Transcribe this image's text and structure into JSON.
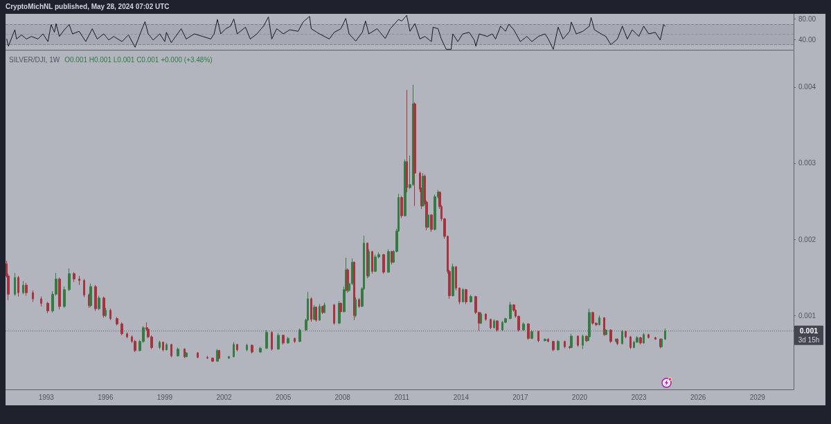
{
  "chart_data": [
    {
      "type": "line",
      "annotations": [
        "CryptoMichNL published, May 28, 2024 07:02 UTC"
      ],
      "series": [
        {
          "color": "#131722",
          "x": [
            "1991-01",
            "1991-02",
            "1991-05",
            "1991-06",
            "1991-07",
            "1991-10",
            "1992-01",
            "1992-04",
            "1992-08",
            "1992-11",
            "1993-02",
            "1993-04",
            "1993-06",
            "1993-07",
            "1993-09",
            "1993-12",
            "1994-03",
            "1994-05",
            "1994-09",
            "1995-01",
            "1995-05",
            "1995-08",
            "1995-12",
            "1996-03",
            "1996-06",
            "1996-11",
            "1997-03",
            "1997-07",
            "1997-11",
            "1998-01",
            "1998-03",
            "1998-06",
            "1998-10",
            "1999-01",
            "1999-02",
            "1999-05",
            "1999-11",
            "2000-02",
            "2000-07",
            "2000-12",
            "2001-05",
            "2001-07",
            "2001-09",
            "2001-11",
            "2002-02",
            "2002-05",
            "2002-07",
            "2002-09",
            "2003-02",
            "2003-05",
            "2003-09",
            "2004-01",
            "2004-04",
            "2004-06",
            "2004-09",
            "2005-01",
            "2005-05",
            "2005-10",
            "2006-01",
            "2006-05",
            "2006-06",
            "2006-11",
            "2007-05",
            "2007-08",
            "2007-12",
            "2008-03",
            "2008-05",
            "2008-09",
            "2009-01",
            "2009-03",
            "2009-05",
            "2009-10",
            "2010-03",
            "2010-06",
            "2010-11",
            "2011-01",
            "2011-04",
            "2011-06",
            "2011-09",
            "2011-12",
            "2012-03",
            "2012-07",
            "2012-08",
            "2012-11",
            "2013-01",
            "2013-04",
            "2013-07",
            "2013-08",
            "2013-11",
            "2014-02",
            "2014-06",
            "2014-09",
            "2014-10",
            "2014-12",
            "2015-05",
            "2015-08",
            "2015-10",
            "2016-01",
            "2016-04",
            "2016-06",
            "2016-09",
            "2017-01",
            "2017-05",
            "2017-08",
            "2017-12",
            "2018-04",
            "2018-06",
            "2018-09",
            "2018-12",
            "2019-03",
            "2019-07",
            "2019-08",
            "2019-11",
            "2020-03",
            "2020-07",
            "2020-08",
            "2020-10",
            "2021-02",
            "2021-05",
            "2021-08",
            "2021-12",
            "2022-03",
            "2022-06",
            "2022-09",
            "2023-01",
            "2023-04",
            "2023-07",
            "2023-11",
            "2024-02",
            "2024-04",
            "2024-05"
          ],
          "values": [
            41,
            27,
            51,
            59,
            41,
            49,
            41,
            46,
            41,
            51,
            36,
            69,
            54,
            71,
            46,
            59,
            69,
            51,
            56,
            36,
            61,
            41,
            51,
            39,
            46,
            36,
            49,
            25,
            59,
            75,
            51,
            39,
            51,
            36,
            54,
            34,
            61,
            41,
            51,
            46,
            41,
            51,
            79,
            51,
            61,
            66,
            80,
            51,
            64,
            41,
            51,
            66,
            84,
            41,
            61,
            51,
            59,
            56,
            74,
            85,
            61,
            51,
            41,
            54,
            61,
            81,
            51,
            37,
            54,
            76,
            51,
            61,
            42,
            61,
            79,
            76,
            87,
            56,
            71,
            41,
            46,
            36,
            64,
            61,
            41,
            21,
            21,
            51,
            36,
            51,
            54,
            39,
            27,
            51,
            46,
            51,
            41,
            66,
            56,
            70,
            59,
            36,
            46,
            36,
            46,
            51,
            41,
            21,
            64,
            41,
            56,
            74,
            51,
            56,
            66,
            83,
            59,
            51,
            46,
            30,
            41,
            66,
            41,
            59,
            46,
            66,
            51,
            54,
            39,
            69,
            66
          ]
        }
      ],
      "xlim": [
        "1990-12-10",
        "2030-11-01"
      ],
      "ylim": [
        20,
        90
      ],
      "yticks": [
        {
          "value": 80,
          "label": "80.00"
        },
        {
          "value": 40,
          "label": "40.00"
        }
      ],
      "tick_labels": "y",
      "bands": [
        {
          "axis": "y",
          "from": 30,
          "to": 70,
          "color": "#a6a9b3"
        }
      ],
      "ref_lines": [
        {
          "axis": "y",
          "value": 70,
          "line_style": "dashed",
          "color": "#7e818b"
        },
        {
          "axis": "y",
          "value": 50,
          "line_style": "dashed",
          "color": "#8e919b"
        },
        {
          "axis": "y",
          "value": 30,
          "line_style": "dashed",
          "color": "#7e818b"
        }
      ]
    },
    {
      "type": "candlestick",
      "title": "SILVER/DJI, 1W",
      "annotations": [
        "O0.001 H0.001 L0.001 C0.001 +0.000 (+3.48%)",
        "3d 15h"
      ],
      "x": [
        "1991-01",
        "1991-02",
        "1991-06",
        "1991-08",
        "1991-11",
        "1992-01",
        "1992-05",
        "1992-10",
        "1993-02",
        "1993-05",
        "1993-07",
        "1993-09",
        "1993-12",
        "1994-03",
        "1994-06",
        "1994-09",
        "1994-12",
        "1995-03",
        "1995-04",
        "1995-07",
        "1995-09",
        "1995-12",
        "1996-01",
        "1996-04",
        "1996-08",
        "1996-11",
        "1997-02",
        "1997-05",
        "1997-07",
        "1997-10",
        "1997-12",
        "1998-02",
        "1998-03",
        "1998-05",
        "1998-10",
        "1998-12",
        "1999-02",
        "1999-05",
        "1999-09",
        "2000-01",
        "2000-02",
        "2000-09",
        "2001-03",
        "2001-06",
        "2001-09",
        "2001-10",
        "2002-04",
        "2002-07",
        "2002-09",
        "2003-03",
        "2003-06",
        "2003-11",
        "2004-03",
        "2004-06",
        "2004-10",
        "2005-01",
        "2005-04",
        "2005-08",
        "2005-11",
        "2006-03",
        "2006-04",
        "2006-06",
        "2006-08",
        "2006-09",
        "2006-11",
        "2007-01",
        "2007-02",
        "2007-08",
        "2007-11",
        "2007-12",
        "2008-02",
        "2008-03",
        "2008-04",
        "2008-05",
        "2008-07",
        "2008-08",
        "2008-09",
        "2008-11",
        "2009-01",
        "2009-02",
        "2009-04",
        "2009-05",
        "2009-07",
        "2009-09",
        "2009-11",
        "2010-02",
        "2010-05",
        "2010-07",
        "2010-08",
        "2010-10",
        "2010-11",
        "2011-01",
        "2011-03",
        "2011-04",
        "2011-06",
        "2011-08",
        "2011-09",
        "2011-12",
        "2012-01",
        "2012-02",
        "2012-03",
        "2012-04",
        "2012-05",
        "2012-07",
        "2012-09",
        "2012-11",
        "2012-12",
        "2013-01",
        "2013-03",
        "2013-05",
        "2013-06",
        "2013-08",
        "2013-10",
        "2013-12",
        "2014-02",
        "2014-04",
        "2014-07",
        "2014-10",
        "2014-12",
        "2015-01",
        "2015-04",
        "2015-07",
        "2015-09",
        "2015-11",
        "2016-02",
        "2016-04",
        "2016-07",
        "2016-09",
        "2016-10",
        "2016-12",
        "2017-03",
        "2017-06",
        "2017-08",
        "2017-12",
        "2018-04",
        "2018-06",
        "2018-09",
        "2018-12",
        "2019-04",
        "2019-07",
        "2019-08",
        "2019-12",
        "2020-03",
        "2020-05",
        "2020-06",
        "2020-07",
        "2020-09",
        "2020-11",
        "2021-01",
        "2021-04",
        "2021-05",
        "2021-08",
        "2021-11",
        "2021-12",
        "2022-03",
        "2022-05",
        "2022-08",
        "2022-10",
        "2022-12",
        "2023-02",
        "2023-04",
        "2023-07",
        "2023-11",
        "2024-02",
        "2024-03",
        "2024-05"
      ],
      "ohlc": [
        [
          0.00168,
          0.00172,
          0.0015,
          0.00152
        ],
        [
          0.00152,
          0.00155,
          0.0012,
          0.00128
        ],
        [
          0.00128,
          0.00156,
          0.00126,
          0.0015
        ],
        [
          0.0015,
          0.00152,
          0.00125,
          0.0013
        ],
        [
          0.0013,
          0.00145,
          0.00128,
          0.0014
        ],
        [
          0.0014,
          0.00143,
          0.00126,
          0.0013
        ],
        [
          0.0013,
          0.00133,
          0.00118,
          0.00122
        ],
        [
          0.00122,
          0.00125,
          0.00112,
          0.00116
        ],
        [
          0.00116,
          0.00118,
          0.00103,
          0.00106
        ],
        [
          0.00106,
          0.00132,
          0.00104,
          0.00128
        ],
        [
          0.00128,
          0.00156,
          0.00126,
          0.00148
        ],
        [
          0.00148,
          0.0015,
          0.00108,
          0.00112
        ],
        [
          0.00112,
          0.00138,
          0.0011,
          0.00134
        ],
        [
          0.00134,
          0.00162,
          0.00132,
          0.00155
        ],
        [
          0.00155,
          0.00157,
          0.00144,
          0.00148
        ],
        [
          0.00148,
          0.00152,
          0.0014,
          0.00146
        ],
        [
          0.00146,
          0.00148,
          0.00124,
          0.00127
        ],
        [
          0.00127,
          0.00129,
          0.0011,
          0.00113
        ],
        [
          0.00113,
          0.00142,
          0.00111,
          0.00138
        ],
        [
          0.00138,
          0.0014,
          0.00106,
          0.00109
        ],
        [
          0.00109,
          0.00126,
          0.00107,
          0.00123
        ],
        [
          0.00123,
          0.00125,
          0.00097,
          0.001
        ],
        [
          0.001,
          0.0011,
          0.00098,
          0.00107
        ],
        [
          0.00107,
          0.00109,
          0.00094,
          0.00096
        ],
        [
          0.00096,
          0.00098,
          0.00087,
          0.00089
        ],
        [
          0.00089,
          0.00091,
          0.00074,
          0.00076
        ],
        [
          0.00076,
          0.00078,
          0.0007,
          0.00072
        ],
        [
          0.00072,
          0.00074,
          0.00064,
          0.00066
        ],
        [
          0.00066,
          0.00068,
          0.00052,
          0.00054
        ],
        [
          0.00054,
          0.00068,
          0.00053,
          0.00066
        ],
        [
          0.00066,
          0.00086,
          0.00064,
          0.00084
        ],
        [
          0.00084,
          0.00091,
          0.0008,
          0.00082
        ],
        [
          0.00082,
          0.00084,
          0.0007,
          0.00072
        ],
        [
          0.00072,
          0.00074,
          0.00056,
          0.00058
        ],
        [
          0.00058,
          0.00067,
          0.00056,
          0.00065
        ],
        [
          0.00065,
          0.00066,
          0.00053,
          0.00055
        ],
        [
          0.00055,
          0.00064,
          0.00054,
          0.00062
        ],
        [
          0.00062,
          0.00063,
          0.00045,
          0.00047
        ],
        [
          0.00047,
          0.00058,
          0.00046,
          0.00056
        ],
        [
          0.00056,
          0.00057,
          0.00044,
          0.00046
        ],
        [
          0.00046,
          0.00052,
          0.00045,
          0.00051
        ],
        [
          0.00051,
          0.00052,
          0.00044,
          0.00045
        ],
        [
          0.00045,
          0.00047,
          0.00043,
          0.00044
        ],
        [
          0.00044,
          0.00045,
          0.00039,
          0.0004
        ],
        [
          0.0004,
          0.00056,
          0.0004,
          0.00054
        ],
        [
          0.00054,
          0.00055,
          0.00043,
          0.00044
        ],
        [
          0.00044,
          0.00047,
          0.00043,
          0.00046
        ],
        [
          0.00046,
          0.00065,
          0.00045,
          0.00062
        ],
        [
          0.00062,
          0.00063,
          0.00053,
          0.00055
        ],
        [
          0.00055,
          0.00063,
          0.00053,
          0.00061
        ],
        [
          0.00061,
          0.00062,
          0.0005,
          0.00052
        ],
        [
          0.00052,
          0.00059,
          0.00051,
          0.00057
        ],
        [
          0.00057,
          0.00081,
          0.00056,
          0.00078
        ],
        [
          0.00078,
          0.00079,
          0.00054,
          0.00056
        ],
        [
          0.00056,
          0.00077,
          0.00055,
          0.00074
        ],
        [
          0.00074,
          0.00075,
          0.00062,
          0.00064
        ],
        [
          0.00064,
          0.00072,
          0.00063,
          0.0007
        ],
        [
          0.0007,
          0.00071,
          0.00064,
          0.00066
        ],
        [
          0.00066,
          0.00083,
          0.00065,
          0.00081
        ],
        [
          0.00081,
          0.00096,
          0.0008,
          0.00094
        ],
        [
          0.00094,
          0.00131,
          0.00093,
          0.00122
        ],
        [
          0.00122,
          0.00124,
          0.00092,
          0.00095
        ],
        [
          0.00095,
          0.00114,
          0.00094,
          0.00111
        ],
        [
          0.00111,
          0.00112,
          0.00092,
          0.00094
        ],
        [
          0.00094,
          0.00115,
          0.00093,
          0.00112
        ],
        [
          0.00112,
          0.00113,
          0.00102,
          0.00104
        ],
        [
          0.00104,
          0.00117,
          0.00103,
          0.00114
        ],
        [
          0.00114,
          0.00115,
          0.00088,
          0.0009
        ],
        [
          0.0009,
          0.00119,
          0.00089,
          0.00116
        ],
        [
          0.00116,
          0.00117,
          0.00103,
          0.00105
        ],
        [
          0.00105,
          0.00138,
          0.00104,
          0.00134
        ],
        [
          0.00134,
          0.00176,
          0.00132,
          0.0016
        ],
        [
          0.0016,
          0.00162,
          0.0013,
          0.00133
        ],
        [
          0.00133,
          0.00145,
          0.00131,
          0.00142
        ],
        [
          0.00142,
          0.00175,
          0.0014,
          0.0017
        ],
        [
          0.0017,
          0.00171,
          0.00094,
          0.001
        ],
        [
          0.001,
          0.00124,
          0.00098,
          0.00121
        ],
        [
          0.00121,
          0.00123,
          0.0011,
          0.00112
        ],
        [
          0.00112,
          0.00137,
          0.00111,
          0.00135
        ],
        [
          0.00135,
          0.00205,
          0.00134,
          0.00195
        ],
        [
          0.00195,
          0.00196,
          0.00149,
          0.00152
        ],
        [
          0.00152,
          0.00187,
          0.0015,
          0.00184
        ],
        [
          0.00184,
          0.00185,
          0.00155,
          0.00158
        ],
        [
          0.00158,
          0.0018,
          0.00157,
          0.00177
        ],
        [
          0.00177,
          0.00183,
          0.00175,
          0.0018
        ],
        [
          0.0018,
          0.00181,
          0.00155,
          0.00157
        ],
        [
          0.00157,
          0.00187,
          0.00156,
          0.00184
        ],
        [
          0.00184,
          0.00185,
          0.00167,
          0.0017
        ],
        [
          0.0017,
          0.00186,
          0.00169,
          0.00184
        ],
        [
          0.00184,
          0.00214,
          0.00183,
          0.00211
        ],
        [
          0.00211,
          0.0026,
          0.0021,
          0.00255
        ],
        [
          0.00255,
          0.00257,
          0.00228,
          0.00231
        ],
        [
          0.00231,
          0.00305,
          0.0023,
          0.00302
        ],
        [
          0.00302,
          0.00396,
          0.00262,
          0.00268
        ],
        [
          0.00268,
          0.0031,
          0.00266,
          0.00272
        ],
        [
          0.00272,
          0.00403,
          0.0027,
          0.00378
        ],
        [
          0.00378,
          0.0038,
          0.00244,
          0.00287
        ],
        [
          0.00287,
          0.00289,
          0.00262,
          0.00266
        ],
        [
          0.00266,
          0.00268,
          0.0024,
          0.00244
        ],
        [
          0.00244,
          0.00287,
          0.00243,
          0.00283
        ],
        [
          0.00283,
          0.00285,
          0.00246,
          0.00249
        ],
        [
          0.00249,
          0.00251,
          0.00212,
          0.00216
        ],
        [
          0.00216,
          0.00234,
          0.00215,
          0.00232
        ],
        [
          0.00232,
          0.00233,
          0.0021,
          0.00213
        ],
        [
          0.00213,
          0.00259,
          0.00212,
          0.00256
        ],
        [
          0.00256,
          0.00265,
          0.00254,
          0.00262
        ],
        [
          0.00262,
          0.00263,
          0.0024,
          0.00243
        ],
        [
          0.00243,
          0.00245,
          0.00224,
          0.00227
        ],
        [
          0.00227,
          0.00228,
          0.00201,
          0.00204
        ],
        [
          0.00204,
          0.00205,
          0.00155,
          0.00158
        ],
        [
          0.00158,
          0.0016,
          0.00122,
          0.00126
        ],
        [
          0.00126,
          0.00168,
          0.00125,
          0.00164
        ],
        [
          0.00164,
          0.00165,
          0.00133,
          0.00136
        ],
        [
          0.00136,
          0.00137,
          0.00115,
          0.00118
        ],
        [
          0.00118,
          0.00136,
          0.00117,
          0.00134
        ],
        [
          0.00134,
          0.00135,
          0.00115,
          0.00118
        ],
        [
          0.00118,
          0.00127,
          0.00117,
          0.00125
        ],
        [
          0.00125,
          0.00126,
          0.00102,
          0.00104
        ],
        [
          0.00104,
          0.00105,
          0.0008,
          0.0009
        ],
        [
          0.0009,
          0.00104,
          0.00089,
          0.00102
        ],
        [
          0.00102,
          0.00103,
          0.00093,
          0.00095
        ],
        [
          0.00095,
          0.00096,
          0.00082,
          0.00084
        ],
        [
          0.00084,
          0.00095,
          0.00083,
          0.00093
        ],
        [
          0.00093,
          0.00094,
          0.00079,
          0.00081
        ],
        [
          0.00081,
          0.00093,
          0.0008,
          0.00091
        ],
        [
          0.00091,
          0.00097,
          0.0009,
          0.00096
        ],
        [
          0.00096,
          0.00118,
          0.00095,
          0.00114
        ],
        [
          0.00114,
          0.00115,
          0.00105,
          0.00107
        ],
        [
          0.00107,
          0.00108,
          0.00097,
          0.00099
        ],
        [
          0.00099,
          0.001,
          0.00079,
          0.00081
        ],
        [
          0.00081,
          0.00091,
          0.0008,
          0.00089
        ],
        [
          0.00089,
          0.0009,
          0.00068,
          0.0007
        ],
        [
          0.0007,
          0.00081,
          0.00069,
          0.00079
        ],
        [
          0.00079,
          0.0008,
          0.00065,
          0.00067
        ],
        [
          0.00067,
          0.0007,
          0.00066,
          0.00069
        ],
        [
          0.00069,
          0.0007,
          0.00065,
          0.00066
        ],
        [
          0.00066,
          0.00067,
          0.00053,
          0.00055
        ],
        [
          0.00055,
          0.00068,
          0.00054,
          0.00066
        ],
        [
          0.00066,
          0.00067,
          0.00057,
          0.00059
        ],
        [
          0.00059,
          0.0006,
          0.00056,
          0.00058
        ],
        [
          0.00058,
          0.00076,
          0.00057,
          0.00073
        ],
        [
          0.00073,
          0.00074,
          0.00059,
          0.00061
        ],
        [
          0.00061,
          0.00075,
          0.00056,
          0.00073
        ],
        [
          0.00073,
          0.00074,
          0.00065,
          0.00067
        ],
        [
          0.00067,
          0.00073,
          0.00066,
          0.00072
        ],
        [
          0.00072,
          0.00109,
          0.00071,
          0.00104
        ],
        [
          0.00104,
          0.00105,
          0.00088,
          0.0009
        ],
        [
          0.0009,
          0.00091,
          0.00086,
          0.00088
        ],
        [
          0.00088,
          0.001,
          0.00087,
          0.00097
        ],
        [
          0.00097,
          0.00098,
          0.00073,
          0.00075
        ],
        [
          0.00075,
          0.00082,
          0.00074,
          0.00081
        ],
        [
          0.00081,
          0.00082,
          0.00064,
          0.00066
        ],
        [
          0.00066,
          0.0007,
          0.00065,
          0.00069
        ],
        [
          0.00069,
          0.0007,
          0.00061,
          0.00063
        ],
        [
          0.00063,
          0.00081,
          0.00062,
          0.00079
        ],
        [
          0.00079,
          0.0008,
          0.0007,
          0.00072
        ],
        [
          0.00072,
          0.00073,
          0.00056,
          0.00058
        ],
        [
          0.00058,
          0.00067,
          0.00057,
          0.00065
        ],
        [
          0.00065,
          0.00073,
          0.00064,
          0.00071
        ],
        [
          0.00071,
          0.00072,
          0.00062,
          0.00064
        ],
        [
          0.00064,
          0.00077,
          0.00063,
          0.00075
        ],
        [
          0.00075,
          0.00076,
          0.0007,
          0.00071
        ],
        [
          0.00071,
          0.00072,
          0.00068,
          0.00069
        ],
        [
          0.00069,
          0.0007,
          0.00057,
          0.00059
        ],
        [
          0.00059,
          0.0007,
          0.00058,
          0.00069
        ],
        [
          0.00069,
          0.00083,
          0.00068,
          0.0008
        ]
      ],
      "colors": [
        "#a5343f",
        "#a5343f",
        "#367c42",
        "#a5343f",
        "#367c42",
        "#a5343f",
        "#a5343f",
        "#a5343f",
        "#a5343f",
        "#367c42",
        "#367c42",
        "#a5343f",
        "#367c42",
        "#367c42",
        "#a5343f",
        "#a5343f",
        "#a5343f",
        "#a5343f",
        "#367c42",
        "#a5343f",
        "#367c42",
        "#a5343f",
        "#367c42",
        "#a5343f",
        "#a5343f",
        "#a5343f",
        "#a5343f",
        "#a5343f",
        "#a5343f",
        "#367c42",
        "#367c42",
        "#a5343f",
        "#a5343f",
        "#a5343f",
        "#367c42",
        "#a5343f",
        "#367c42",
        "#a5343f",
        "#367c42",
        "#a5343f",
        "#367c42",
        "#a5343f",
        "#a5343f",
        "#a5343f",
        "#367c42",
        "#a5343f",
        "#367c42",
        "#367c42",
        "#a5343f",
        "#367c42",
        "#a5343f",
        "#367c42",
        "#367c42",
        "#a5343f",
        "#367c42",
        "#a5343f",
        "#367c42",
        "#a5343f",
        "#367c42",
        "#367c42",
        "#367c42",
        "#a5343f",
        "#367c42",
        "#a5343f",
        "#367c42",
        "#a5343f",
        "#367c42",
        "#a5343f",
        "#367c42",
        "#a5343f",
        "#367c42",
        "#367c42",
        "#a5343f",
        "#367c42",
        "#367c42",
        "#a5343f",
        "#367c42",
        "#a5343f",
        "#367c42",
        "#367c42",
        "#a5343f",
        "#367c42",
        "#a5343f",
        "#367c42",
        "#367c42",
        "#a5343f",
        "#367c42",
        "#a5343f",
        "#367c42",
        "#367c42",
        "#367c42",
        "#a5343f",
        "#367c42",
        "#a5343f",
        "#367c42",
        "#367c42",
        "#a5343f",
        "#a5343f",
        "#a5343f",
        "#367c42",
        "#a5343f",
        "#a5343f",
        "#367c42",
        "#a5343f",
        "#367c42",
        "#367c42",
        "#a5343f",
        "#a5343f",
        "#a5343f",
        "#a5343f",
        "#a5343f",
        "#367c42",
        "#a5343f",
        "#a5343f",
        "#367c42",
        "#a5343f",
        "#367c42",
        "#a5343f",
        "#a5343f",
        "#367c42",
        "#a5343f",
        "#a5343f",
        "#367c42",
        "#a5343f",
        "#367c42",
        "#367c42",
        "#367c42",
        "#a5343f",
        "#a5343f",
        "#a5343f",
        "#367c42",
        "#a5343f",
        "#367c42",
        "#a5343f",
        "#367c42",
        "#a5343f",
        "#a5343f",
        "#367c42",
        "#a5343f",
        "#a5343f",
        "#367c42",
        "#a5343f",
        "#367c42",
        "#a5343f",
        "#367c42",
        "#367c42",
        "#a5343f",
        "#a5343f",
        "#367c42",
        "#a5343f",
        "#367c42",
        "#a5343f",
        "#367c42",
        "#a5343f",
        "#367c42",
        "#a5343f",
        "#a5343f",
        "#367c42",
        "#367c42",
        "#a5343f",
        "#367c42",
        "#a5343f",
        "#a5343f",
        "#a5343f",
        "#367c42",
        "#367c42"
      ],
      "xlim": [
        "1990-12-10",
        "2030-11-01"
      ],
      "xticks": [
        "1993",
        "1996",
        "1999",
        "2002",
        "2005",
        "2008",
        "2011",
        "2014",
        "2017",
        "2020",
        "2023",
        "2026",
        "2029"
      ],
      "ylim": [
        3e-05,
        0.00448
      ],
      "yticks": [
        0.001,
        0.002,
        0.003,
        0.004
      ],
      "ref_lines": [
        {
          "axis": "y",
          "value": 0.0008,
          "label": "0.001",
          "line_style": "dotted",
          "color": "#5d606b"
        }
      ]
    }
  ]
}
